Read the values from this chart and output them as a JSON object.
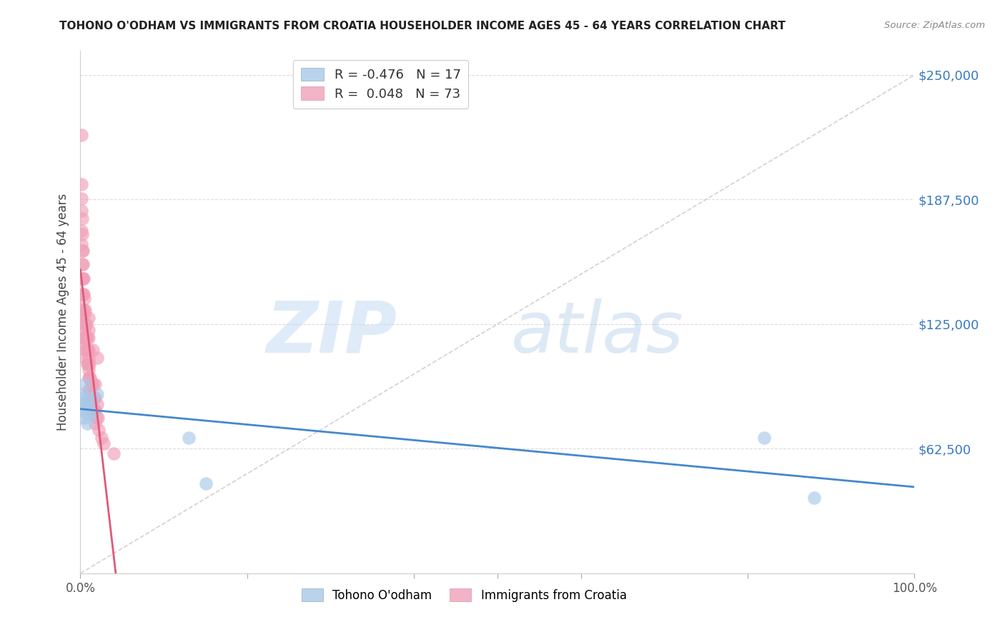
{
  "title": "TOHONO O'ODHAM VS IMMIGRANTS FROM CROATIA HOUSEHOLDER INCOME AGES 45 - 64 YEARS CORRELATION CHART",
  "source": "Source: ZipAtlas.com",
  "ylabel": "Householder Income Ages 45 - 64 years",
  "y_tick_values": [
    62500,
    125000,
    187500,
    250000
  ],
  "ylim": [
    0,
    262000
  ],
  "xlim": [
    0,
    1.0
  ],
  "blue_color": "#a8c8e8",
  "pink_color": "#f0a0b8",
  "blue_line_color": "#4488cc",
  "pink_line_color": "#e05878",
  "diag_line_color": "#d0c0d0",
  "blue_scatter_x": [
    0.002,
    0.003,
    0.004,
    0.004,
    0.005,
    0.005,
    0.006,
    0.007,
    0.008,
    0.01,
    0.012,
    0.015,
    0.02,
    0.13,
    0.15,
    0.82,
    0.88
  ],
  "blue_scatter_y": [
    90000,
    85000,
    88000,
    82000,
    95000,
    78000,
    85000,
    80000,
    75000,
    88000,
    85000,
    80000,
    90000,
    68000,
    45000,
    68000,
    38000
  ],
  "pink_scatter_x": [
    0.001,
    0.001,
    0.001,
    0.001,
    0.001,
    0.001,
    0.002,
    0.002,
    0.002,
    0.002,
    0.002,
    0.002,
    0.002,
    0.003,
    0.003,
    0.003,
    0.003,
    0.003,
    0.003,
    0.003,
    0.004,
    0.004,
    0.004,
    0.004,
    0.004,
    0.005,
    0.005,
    0.005,
    0.005,
    0.005,
    0.006,
    0.006,
    0.006,
    0.006,
    0.007,
    0.007,
    0.008,
    0.008,
    0.008,
    0.009,
    0.009,
    0.01,
    0.01,
    0.01,
    0.01,
    0.01,
    0.01,
    0.01,
    0.01,
    0.01,
    0.011,
    0.011,
    0.011,
    0.012,
    0.012,
    0.013,
    0.014,
    0.015,
    0.015,
    0.016,
    0.017,
    0.018,
    0.018,
    0.018,
    0.018,
    0.019,
    0.02,
    0.02,
    0.021,
    0.022,
    0.025,
    0.028,
    0.04
  ],
  "pink_scatter_y": [
    220000,
    195000,
    188000,
    182000,
    172000,
    165000,
    178000,
    170000,
    162000,
    155000,
    148000,
    140000,
    130000,
    162000,
    155000,
    148000,
    140000,
    132000,
    125000,
    118000,
    148000,
    140000,
    132000,
    125000,
    118000,
    138000,
    130000,
    122000,
    115000,
    108000,
    132000,
    125000,
    118000,
    112000,
    125000,
    118000,
    118000,
    112000,
    105000,
    112000,
    105000,
    128000,
    122000,
    118000,
    112000,
    108000,
    102000,
    98000,
    92000,
    85000,
    105000,
    98000,
    92000,
    98000,
    92000,
    95000,
    88000,
    112000,
    95000,
    88000,
    82000,
    95000,
    88000,
    82000,
    75000,
    78000,
    108000,
    85000,
    78000,
    72000,
    68000,
    65000,
    60000
  ]
}
